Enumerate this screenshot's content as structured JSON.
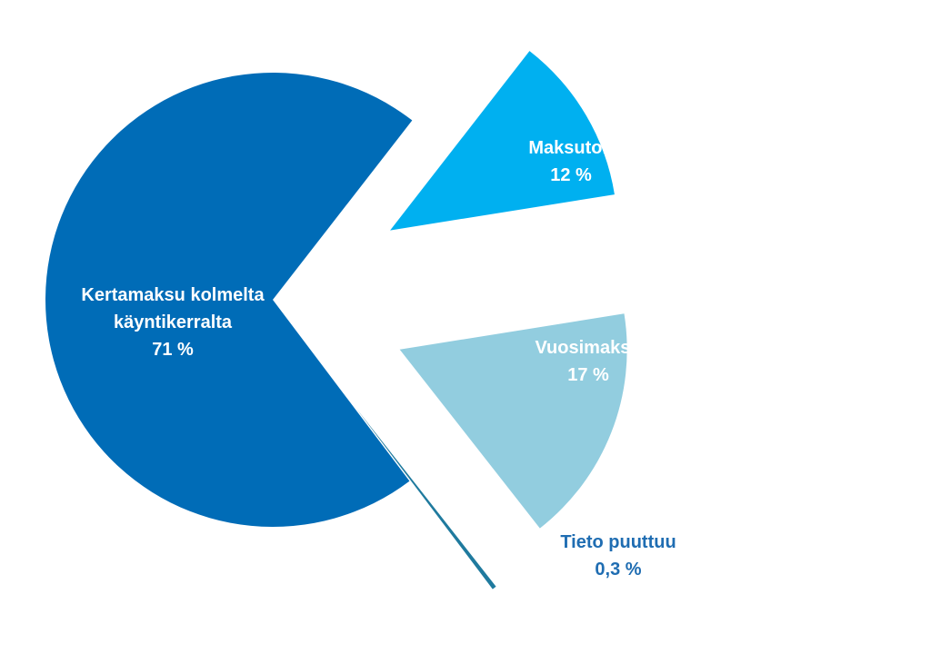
{
  "chart_data": {
    "type": "pie",
    "categories": [
      "Kertamaksu kolmelta käyntikerralta",
      "Maksuton",
      "Vuosimaksu",
      "Tieto puuttuu"
    ],
    "values": [
      71,
      12,
      17,
      0.3
    ],
    "value_labels": [
      "71 %",
      "12 %",
      "17 %",
      "0,3 %"
    ],
    "colors": [
      "#006cb7",
      "#00b0f0",
      "#92cddf",
      "#1f7a9e"
    ]
  }
}
